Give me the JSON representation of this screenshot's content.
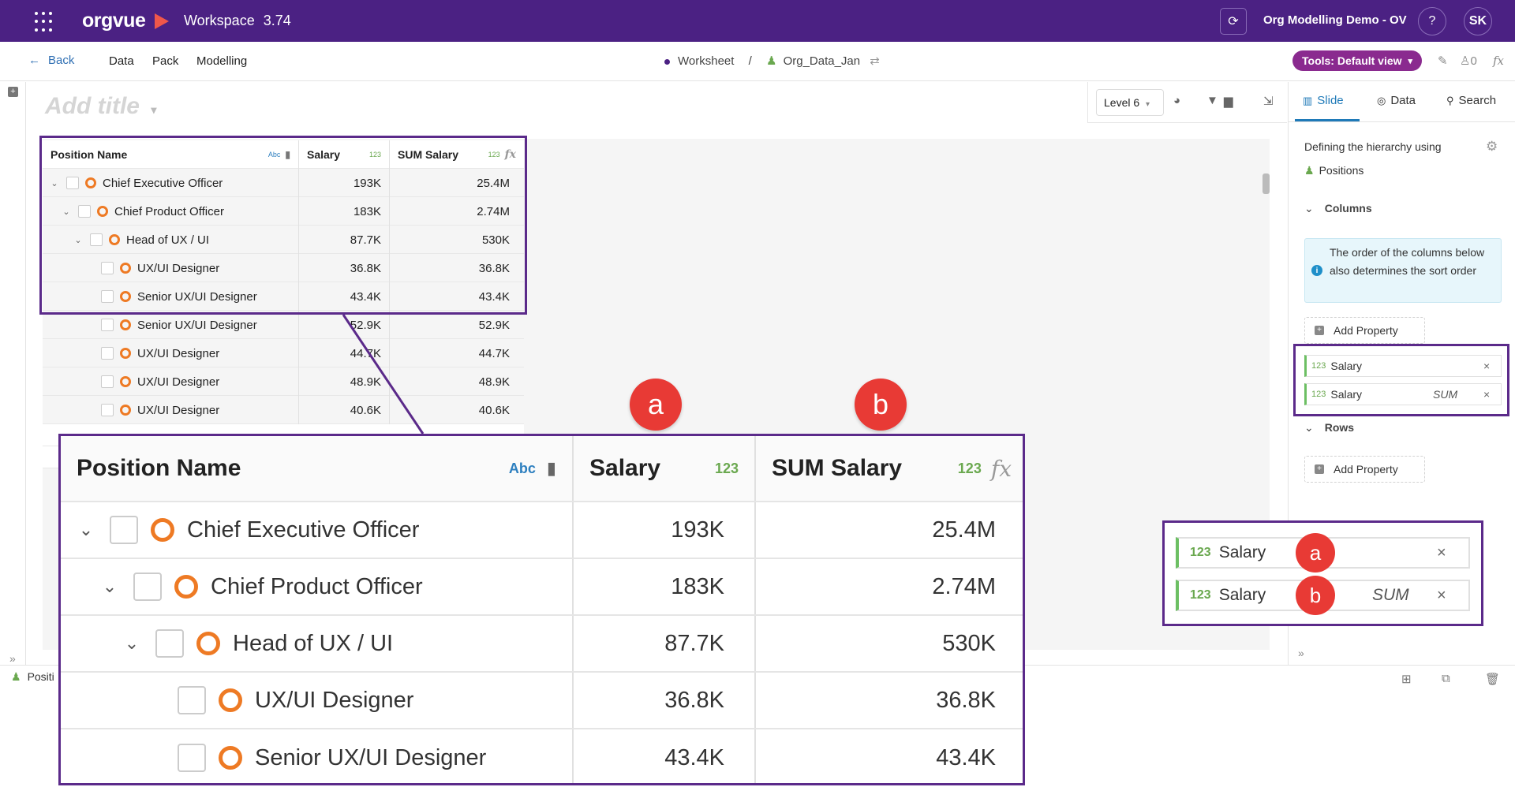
{
  "topbar": {
    "logo": "orgvue",
    "workspace": "Workspace",
    "version": "3.74",
    "org_name": "Org Modelling Demo - OV",
    "help": "?",
    "avatar": "SK"
  },
  "navbar": {
    "back": "Back",
    "links": [
      "Data",
      "Pack",
      "Modelling"
    ],
    "crumb_worksheet": "Worksheet",
    "crumb_sep": "/",
    "crumb_dataset": "Org_Data_Jan",
    "tools": "Tools: Default view",
    "users_count": "0",
    "fx": "fx"
  },
  "canvas": {
    "title_placeholder": "Add title",
    "level": "Level 6"
  },
  "table": {
    "headers": {
      "name": "Position Name",
      "name_type": "Abc",
      "salary": "Salary",
      "salary_type": "123",
      "sum_salary": "SUM Salary",
      "sum_type": "123",
      "fx": "fx"
    },
    "rows": [
      {
        "name": "Chief Executive Officer",
        "salary": "193K",
        "sum": "25.4M"
      },
      {
        "name": "Chief Product Officer",
        "salary": "183K",
        "sum": "2.74M"
      },
      {
        "name": "Head of UX / UI",
        "salary": "87.7K",
        "sum": "530K"
      },
      {
        "name": "UX/UI Designer",
        "salary": "36.8K",
        "sum": "36.8K"
      },
      {
        "name": "Senior UX/UI Designer",
        "salary": "43.4K",
        "sum": "43.4K"
      },
      {
        "name": "Senior UX/UI Designer",
        "salary": "52.9K",
        "sum": "52.9K"
      },
      {
        "name": "UX/UI Designer",
        "salary": "44.7K",
        "sum": "44.7K"
      },
      {
        "name": "UX/UI Designer",
        "salary": "48.9K",
        "sum": "48.9K"
      },
      {
        "name": "UX/UI Designer",
        "salary": "40.6K",
        "sum": "40.6K"
      }
    ]
  },
  "right_panel": {
    "tabs": [
      "Slide",
      "Data",
      "Search"
    ],
    "hierarchy_label": "Defining the hierarchy using",
    "hierarchy_value": "Positions",
    "columns_label": "Columns",
    "info_text": "The order of the columns below also determines the sort order",
    "info_icon": "i",
    "add_property": "Add Property",
    "properties": [
      {
        "type": "123",
        "name": "Salary",
        "agg": ""
      },
      {
        "type": "123",
        "name": "Salary",
        "agg": "SUM"
      }
    ],
    "rows_label": "Rows",
    "remove": "×"
  },
  "bottom": {
    "label": "Positi"
  },
  "callouts": {
    "a": "a",
    "b": "b"
  },
  "colors": {
    "brand_purple": "#4b2183",
    "accent_magenta": "#8a2a8f",
    "callout_red": "#e83a35",
    "node_orange": "#ee7a24",
    "number_green": "#6aa84f"
  }
}
